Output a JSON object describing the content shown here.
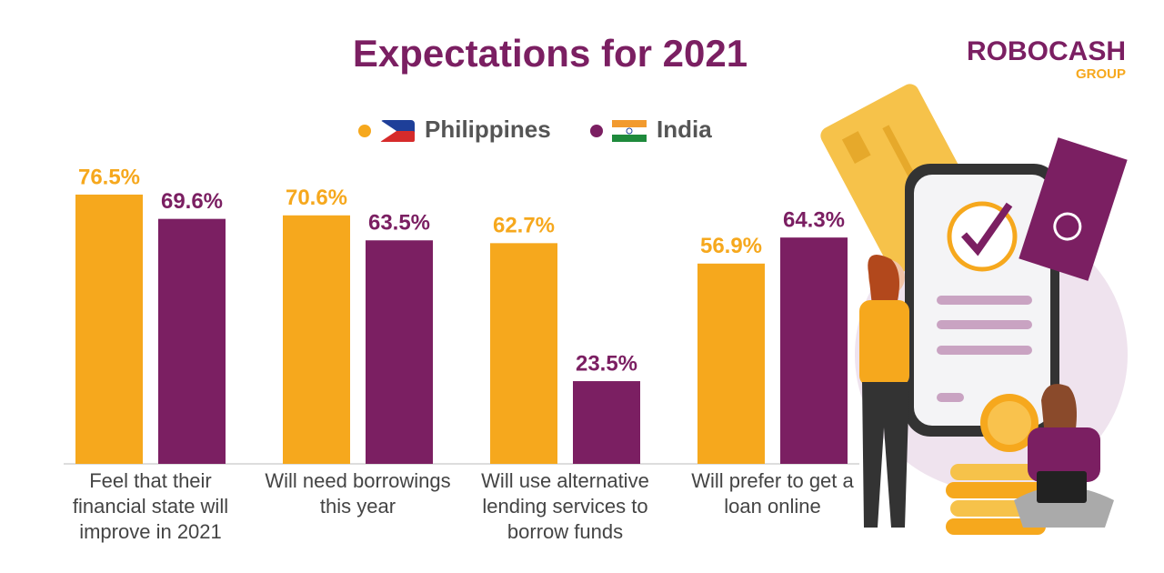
{
  "chart_data": {
    "type": "bar",
    "title": "Expectations for 2021",
    "categories": [
      "Feel that their financial state will improve in 2021",
      "Will need borrowings this year",
      "Will use alternative lending services to borrow funds",
      "Will prefer to get a loan online"
    ],
    "series": [
      {
        "name": "Philippines",
        "color": "#f6a81d",
        "values": [
          76.5,
          70.6,
          62.7,
          56.9
        ],
        "value_labels": [
          "76.5%",
          "70.6%",
          "62.7%",
          "56.9%"
        ]
      },
      {
        "name": "India",
        "color": "#7b1f62",
        "values": [
          69.6,
          63.5,
          23.5,
          64.3
        ],
        "value_labels": [
          "69.6%",
          "63.5%",
          "23.5%",
          "64.3%"
        ]
      }
    ],
    "ylim": [
      0,
      100
    ]
  },
  "logo": {
    "name": "ROBOCASH",
    "sub": "GROUP"
  }
}
